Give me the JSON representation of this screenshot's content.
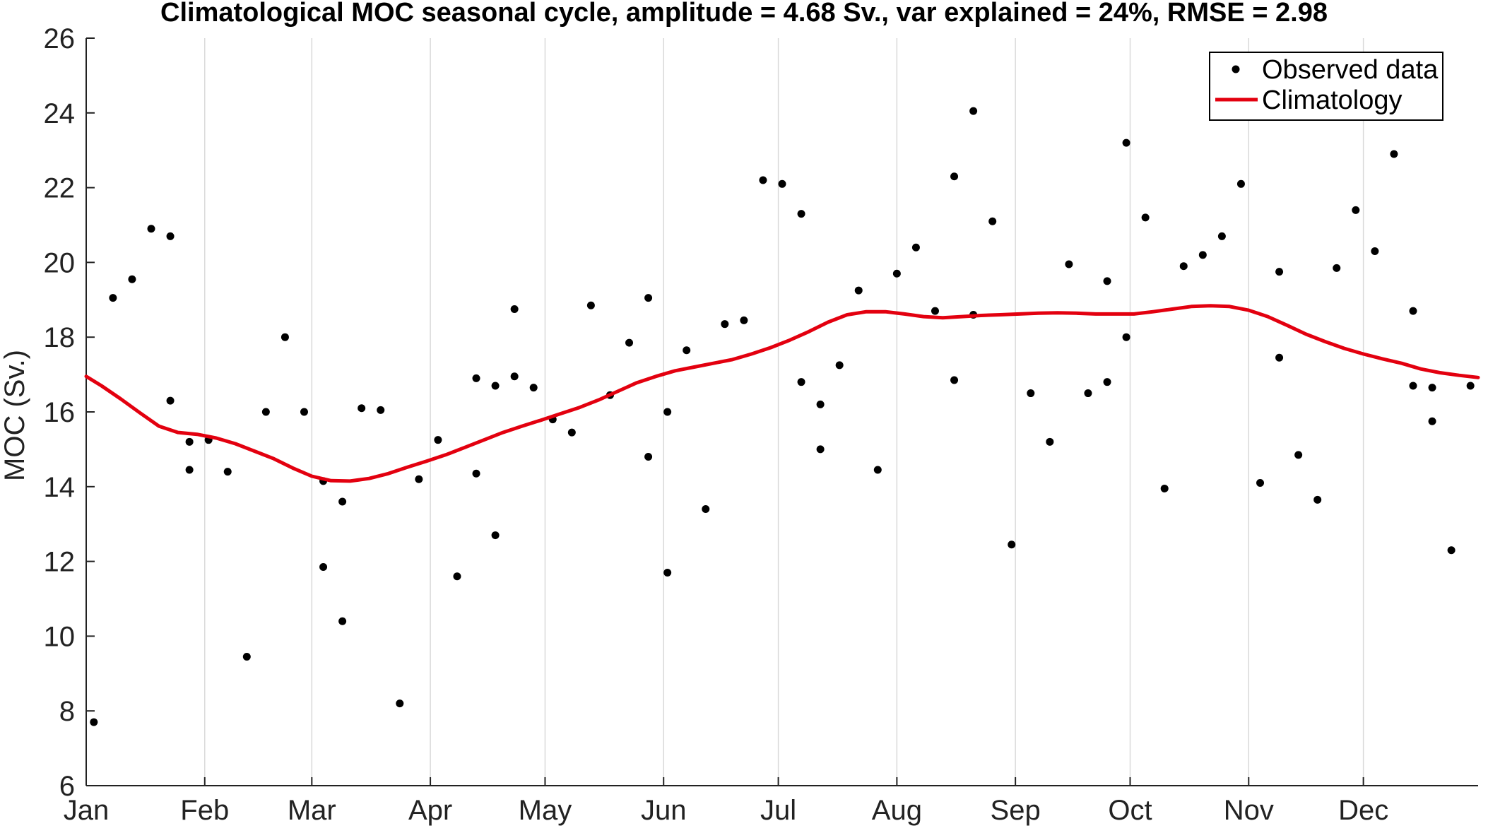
{
  "chart_data": {
    "type": "scatter",
    "title": "Climatological MOC seasonal cycle, amplitude = 4.68 Sv., var explained = 24%, RMSE = 2.98",
    "xlabel": "",
    "ylabel": "MOC (Sv.)",
    "ylim": [
      6,
      26
    ],
    "yticks": [
      6,
      8,
      10,
      12,
      14,
      16,
      18,
      20,
      22,
      24,
      26
    ],
    "xlim": [
      1,
      365
    ],
    "month_ticks": [
      {
        "label": "Jan",
        "day": 1
      },
      {
        "label": "Feb",
        "day": 32
      },
      {
        "label": "Mar",
        "day": 60
      },
      {
        "label": "Apr",
        "day": 91
      },
      {
        "label": "May",
        "day": 121
      },
      {
        "label": "Jun",
        "day": 152
      },
      {
        "label": "Jul",
        "day": 182
      },
      {
        "label": "Aug",
        "day": 213
      },
      {
        "label": "Sep",
        "day": 244
      },
      {
        "label": "Oct",
        "day": 274
      },
      {
        "label": "Nov",
        "day": 305
      },
      {
        "label": "Dec",
        "day": 335
      }
    ],
    "grid": "vertical",
    "legend_position": "top-right",
    "colors": {
      "observed": "#000000",
      "climatology": "#e3000f",
      "grid": "#d9d9d9"
    },
    "series": [
      {
        "name": "Observed data",
        "kind": "scatter",
        "x": [
          3,
          8,
          13,
          18,
          23,
          23,
          28,
          28,
          33,
          38,
          43,
          48,
          53,
          58,
          63,
          63,
          68,
          68,
          73,
          78,
          83,
          88,
          93,
          98,
          103,
          103,
          108,
          108,
          113,
          113,
          118,
          123,
          128,
          133,
          138,
          143,
          148,
          148,
          153,
          153,
          158,
          163,
          168,
          173,
          178,
          183,
          188,
          188,
          193,
          193,
          198,
          203,
          208,
          213,
          218,
          223,
          228,
          228,
          233,
          233,
          238,
          243,
          248,
          253,
          258,
          263,
          268,
          268,
          273,
          273,
          278,
          283,
          288,
          293,
          298,
          303,
          308,
          313,
          313,
          318,
          323,
          328,
          333,
          338,
          343,
          348,
          348,
          353,
          353,
          358,
          363
        ],
        "y": [
          7.7,
          19.05,
          19.55,
          20.9,
          16.3,
          20.7,
          15.2,
          14.45,
          15.25,
          14.4,
          9.45,
          16.0,
          18.0,
          16.0,
          14.15,
          11.85,
          13.6,
          10.4,
          16.1,
          16.05,
          8.2,
          14.2,
          15.25,
          11.6,
          16.9,
          14.35,
          16.7,
          12.7,
          16.95,
          18.75,
          16.65,
          15.8,
          15.45,
          18.85,
          16.45,
          17.85,
          19.05,
          14.8,
          11.7,
          16.0,
          17.65,
          13.4,
          18.35,
          18.45,
          22.2,
          22.1,
          16.8,
          21.3,
          15.0,
          16.2,
          17.25,
          19.25,
          14.45,
          19.7,
          20.4,
          18.7,
          22.3,
          16.85,
          24.05,
          18.6,
          21.1,
          12.45,
          16.5,
          15.2,
          19.95,
          16.5,
          19.5,
          16.8,
          23.2,
          18.0,
          21.2,
          13.95,
          19.9,
          20.2,
          20.7,
          22.1,
          14.1,
          17.45,
          19.75,
          14.85,
          13.65,
          19.85,
          21.4,
          20.3,
          22.9,
          18.7,
          16.7,
          15.75,
          16.65,
          12.3,
          16.7
        ]
      },
      {
        "name": "Climatology",
        "kind": "line",
        "x": [
          1,
          5,
          10,
          15,
          20,
          25,
          30,
          35,
          40,
          45,
          50,
          55,
          60,
          65,
          70,
          75,
          80,
          85,
          90,
          95,
          100,
          105,
          110,
          115,
          120,
          125,
          130,
          135,
          140,
          145,
          150,
          155,
          160,
          165,
          170,
          175,
          180,
          185,
          190,
          195,
          200,
          205,
          210,
          215,
          220,
          225,
          230,
          235,
          240,
          245,
          250,
          255,
          260,
          265,
          270,
          275,
          280,
          285,
          290,
          295,
          300,
          305,
          310,
          315,
          320,
          325,
          330,
          335,
          340,
          345,
          350,
          355,
          360,
          365
        ],
        "y": [
          16.95,
          16.7,
          16.35,
          15.98,
          15.62,
          15.45,
          15.4,
          15.3,
          15.15,
          14.95,
          14.75,
          14.5,
          14.28,
          14.16,
          14.15,
          14.22,
          14.35,
          14.52,
          14.68,
          14.85,
          15.05,
          15.25,
          15.45,
          15.62,
          15.78,
          15.95,
          16.12,
          16.32,
          16.55,
          16.78,
          16.95,
          17.1,
          17.2,
          17.3,
          17.4,
          17.55,
          17.72,
          17.92,
          18.15,
          18.4,
          18.6,
          18.68,
          18.68,
          18.62,
          18.55,
          18.52,
          18.55,
          18.58,
          18.6,
          18.62,
          18.64,
          18.65,
          18.64,
          18.62,
          18.62,
          18.62,
          18.68,
          18.75,
          18.82,
          18.84,
          18.82,
          18.72,
          18.55,
          18.32,
          18.08,
          17.88,
          17.7,
          17.55,
          17.42,
          17.3,
          17.15,
          17.05,
          16.98,
          16.92
        ]
      }
    ]
  }
}
